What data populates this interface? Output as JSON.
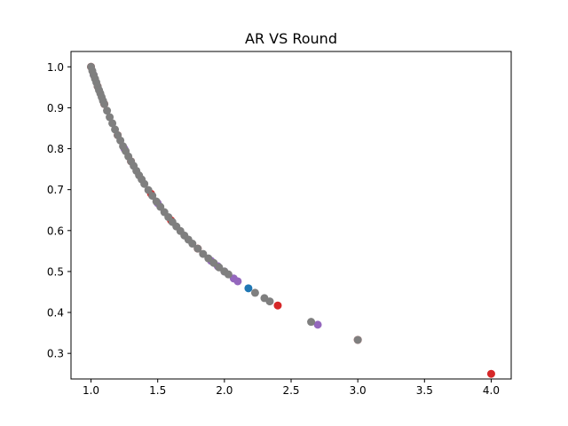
{
  "chart_data": {
    "type": "scatter",
    "title": "AR VS Round",
    "xlabel": "",
    "ylabel": "",
    "xlim": [
      0.85,
      4.15
    ],
    "ylim": [
      0.2375,
      1.0375
    ],
    "xticks": [
      1.0,
      1.5,
      2.0,
      2.5,
      3.0,
      3.5,
      4.0
    ],
    "xtick_labels": [
      "1.0",
      "1.5",
      "2.0",
      "2.5",
      "3.0",
      "3.5",
      "4.0"
    ],
    "yticks": [
      0.3,
      0.4,
      0.5,
      0.6,
      0.7,
      0.8,
      0.9,
      1.0
    ],
    "ytick_labels": [
      "0.3",
      "0.4",
      "0.5",
      "0.6",
      "0.7",
      "0.8",
      "0.9",
      "1.0"
    ],
    "grid": false,
    "legend": "none",
    "colors": {
      "blue": "#1f77b4",
      "red": "#d62728",
      "purple": "#9467bd",
      "gray": "#7f7f7f"
    },
    "series": [
      {
        "color": "#d62728",
        "points": [
          [
            1.0,
            1.0
          ],
          [
            1.05,
            0.952
          ],
          [
            1.1,
            0.909
          ],
          [
            1.2,
            0.833
          ],
          [
            1.3,
            0.769
          ],
          [
            1.45,
            0.69
          ],
          [
            1.6,
            0.625
          ],
          [
            1.8,
            0.556
          ],
          [
            2.4,
            0.417
          ],
          [
            3.0,
            0.333
          ],
          [
            4.0,
            0.25
          ]
        ]
      },
      {
        "color": "#9467bd",
        "points": [
          [
            1.02,
            0.98
          ],
          [
            1.25,
            0.8
          ],
          [
            1.5,
            0.667
          ],
          [
            1.9,
            0.526
          ],
          [
            1.95,
            0.513
          ],
          [
            2.0,
            0.5
          ],
          [
            2.07,
            0.483
          ],
          [
            2.1,
            0.476
          ],
          [
            2.7,
            0.37
          ]
        ]
      },
      {
        "color": "#1f77b4",
        "points": [
          [
            2.18,
            0.459
          ]
        ]
      },
      {
        "color": "#7f7f7f",
        "points": [
          [
            1.0,
            1.0
          ],
          [
            1.01,
            0.99
          ],
          [
            1.02,
            0.98
          ],
          [
            1.03,
            0.971
          ],
          [
            1.04,
            0.962
          ],
          [
            1.05,
            0.952
          ],
          [
            1.06,
            0.943
          ],
          [
            1.07,
            0.935
          ],
          [
            1.08,
            0.926
          ],
          [
            1.09,
            0.917
          ],
          [
            1.1,
            0.909
          ],
          [
            1.12,
            0.893
          ],
          [
            1.14,
            0.877
          ],
          [
            1.16,
            0.862
          ],
          [
            1.18,
            0.847
          ],
          [
            1.2,
            0.833
          ],
          [
            1.22,
            0.82
          ],
          [
            1.24,
            0.806
          ],
          [
            1.26,
            0.794
          ],
          [
            1.28,
            0.781
          ],
          [
            1.3,
            0.769
          ],
          [
            1.32,
            0.758
          ],
          [
            1.34,
            0.746
          ],
          [
            1.36,
            0.735
          ],
          [
            1.38,
            0.725
          ],
          [
            1.4,
            0.714
          ],
          [
            1.43,
            0.699
          ],
          [
            1.46,
            0.685
          ],
          [
            1.49,
            0.671
          ],
          [
            1.52,
            0.658
          ],
          [
            1.55,
            0.645
          ],
          [
            1.58,
            0.633
          ],
          [
            1.61,
            0.621
          ],
          [
            1.64,
            0.61
          ],
          [
            1.67,
            0.599
          ],
          [
            1.7,
            0.588
          ],
          [
            1.73,
            0.578
          ],
          [
            1.76,
            0.568
          ],
          [
            1.8,
            0.556
          ],
          [
            1.84,
            0.543
          ],
          [
            1.88,
            0.532
          ],
          [
            1.92,
            0.521
          ],
          [
            1.96,
            0.51
          ],
          [
            2.0,
            0.5
          ],
          [
            2.03,
            0.493
          ],
          [
            2.23,
            0.448
          ],
          [
            2.3,
            0.435
          ],
          [
            2.34,
            0.427
          ],
          [
            2.65,
            0.377
          ],
          [
            3.0,
            0.333
          ]
        ]
      }
    ]
  }
}
